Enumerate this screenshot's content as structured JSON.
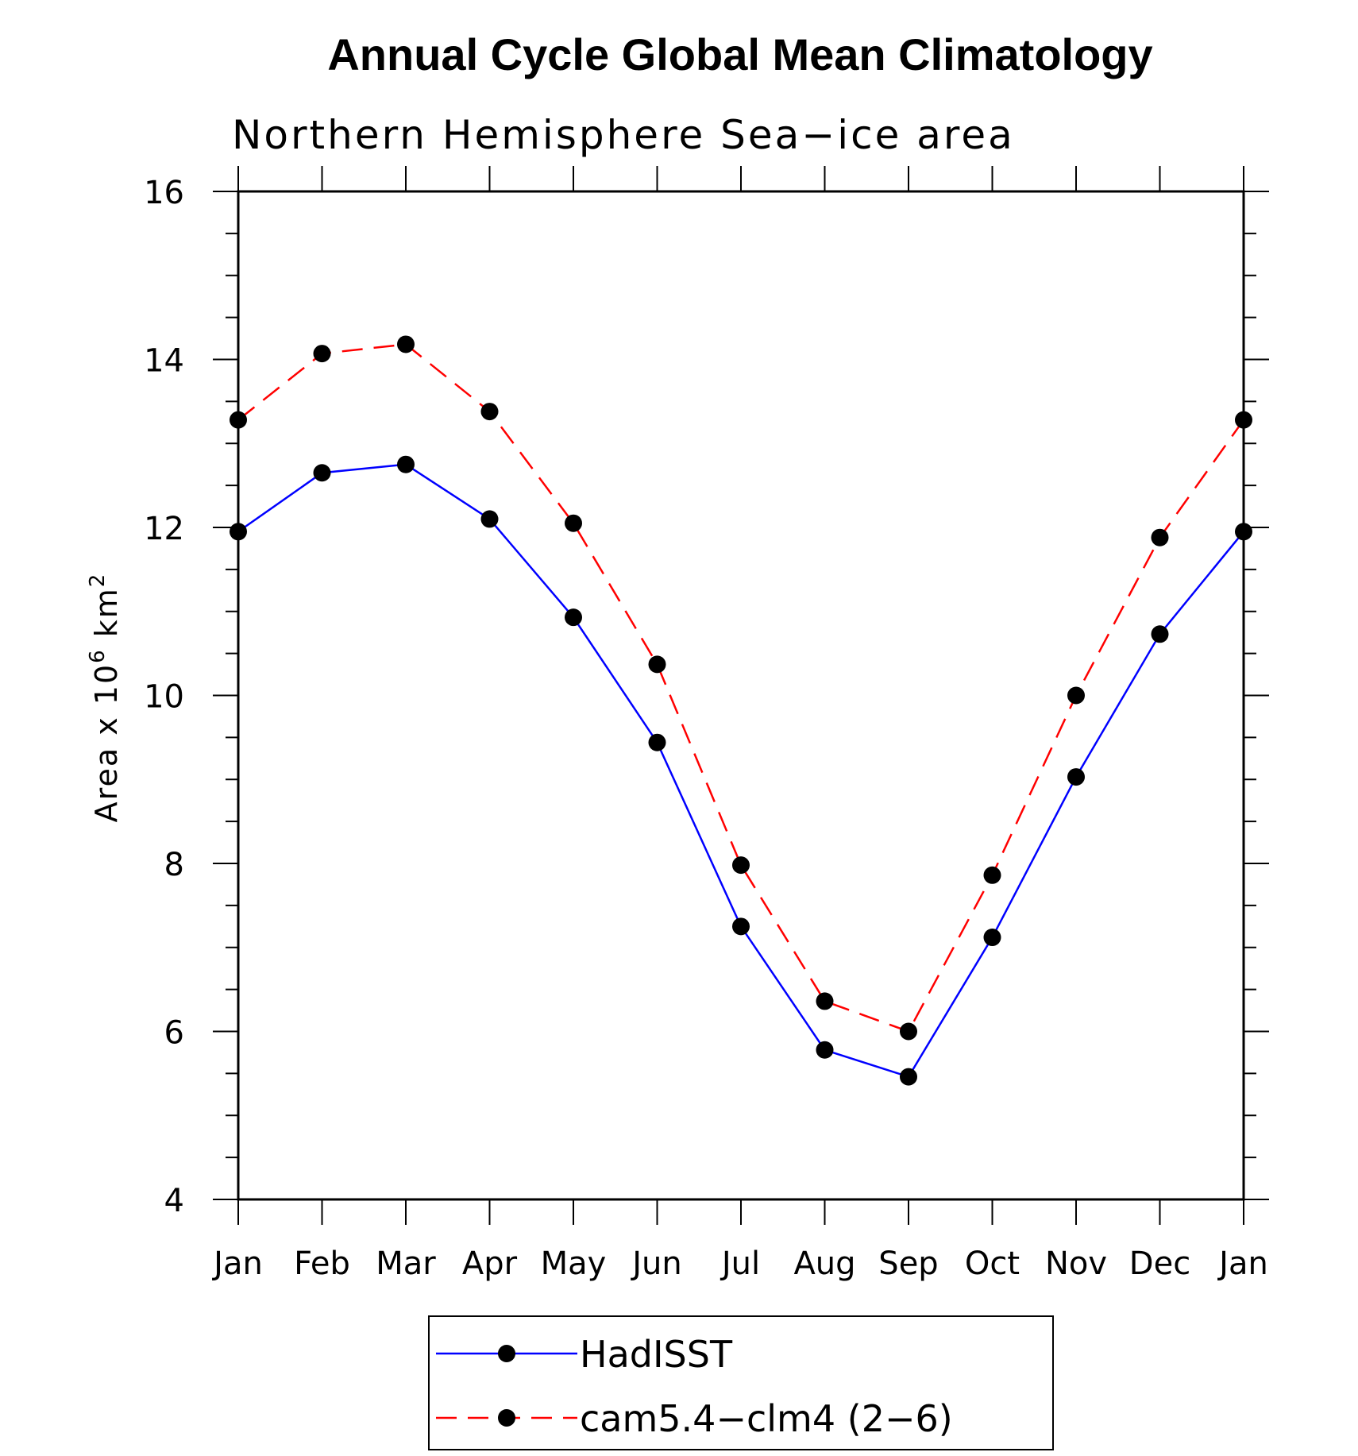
{
  "chart_data": {
    "type": "line",
    "title": "Annual Cycle Global Mean Climatology",
    "subtitle": "Northern Hemisphere Sea−ice area",
    "ylabel": {
      "prefix": "Area x 10",
      "exponent1": "6",
      "mid": " km",
      "exponent2": "2"
    },
    "xlabel": "",
    "categories": [
      "Jan",
      "Feb",
      "Mar",
      "Apr",
      "May",
      "Jun",
      "Jul",
      "Aug",
      "Sep",
      "Oct",
      "Nov",
      "Dec",
      "Jan"
    ],
    "ylim": [
      4,
      16
    ],
    "y_ticks": [
      4,
      6,
      8,
      10,
      12,
      14,
      16
    ],
    "grid": false,
    "legend_position": "bottom",
    "series": [
      {
        "name": "HadISST",
        "color": "#0000ff",
        "dash": "solid",
        "marker": "filled-circle",
        "values": [
          11.95,
          12.65,
          12.75,
          12.1,
          10.93,
          9.44,
          7.25,
          5.78,
          5.46,
          7.12,
          9.03,
          10.73,
          11.95
        ]
      },
      {
        "name": "cam5.4−clm4 (2−6)",
        "color": "#ff0000",
        "dash": "dashed",
        "marker": "filled-circle",
        "values": [
          13.28,
          14.07,
          14.18,
          13.38,
          12.05,
          10.37,
          7.98,
          6.36,
          6.0,
          7.86,
          10.0,
          11.88,
          13.28
        ]
      }
    ]
  }
}
